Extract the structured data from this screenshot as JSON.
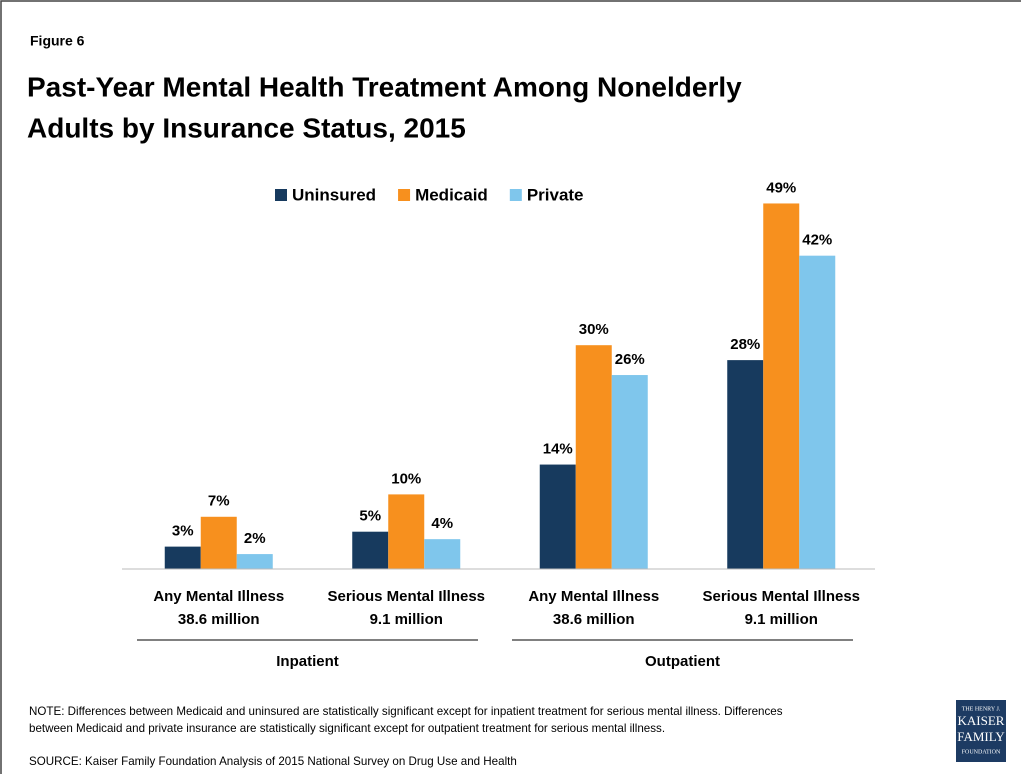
{
  "chart_data": {
    "type": "bar",
    "figure_label": "Figure 6",
    "title": [
      "Past-Year Mental Health Treatment Among Nonelderly",
      "Adults by Insurance Status, 2015"
    ],
    "categories": [
      "Any Mental Illness",
      "Serious Mental Illness",
      "Any Mental Illness",
      "Serious Mental Illness"
    ],
    "category_sublabels": [
      "38.6 million",
      "9.1 million",
      "38.6 million",
      "9.1 million"
    ],
    "groups": [
      "Inpatient",
      "Outpatient"
    ],
    "series": [
      {
        "name": "Uninsured",
        "color": "#173a5e",
        "values": [
          3,
          5,
          14,
          28
        ],
        "value_labels": [
          "3%",
          "5%",
          "14%",
          "28%"
        ]
      },
      {
        "name": "Medicaid",
        "color": "#f7901e",
        "values": [
          7,
          10,
          30,
          49
        ],
        "value_labels": [
          "7%",
          "10%",
          "30%",
          "49%"
        ]
      },
      {
        "name": "Private",
        "color": "#7fc6ec",
        "values": [
          2,
          4,
          26,
          42
        ],
        "value_labels": [
          "2%",
          "4%",
          "26%",
          "42%"
        ]
      }
    ],
    "ylim": [
      0,
      50
    ],
    "legend": "top",
    "note": "NOTE: Differences between Medicaid and uninsured are statistically significant except for inpatient treatment for serious mental illness. Differences between Medicaid and private insurance are statistically significant except for outpatient treatment for serious mental illness.",
    "source": "SOURCE: Kaiser Family Foundation Analysis of 2015 National Survey on Drug Use and Health",
    "logo": [
      "THE HENRY J.",
      "KAISER",
      "FAMILY",
      "FOUNDATION"
    ]
  }
}
